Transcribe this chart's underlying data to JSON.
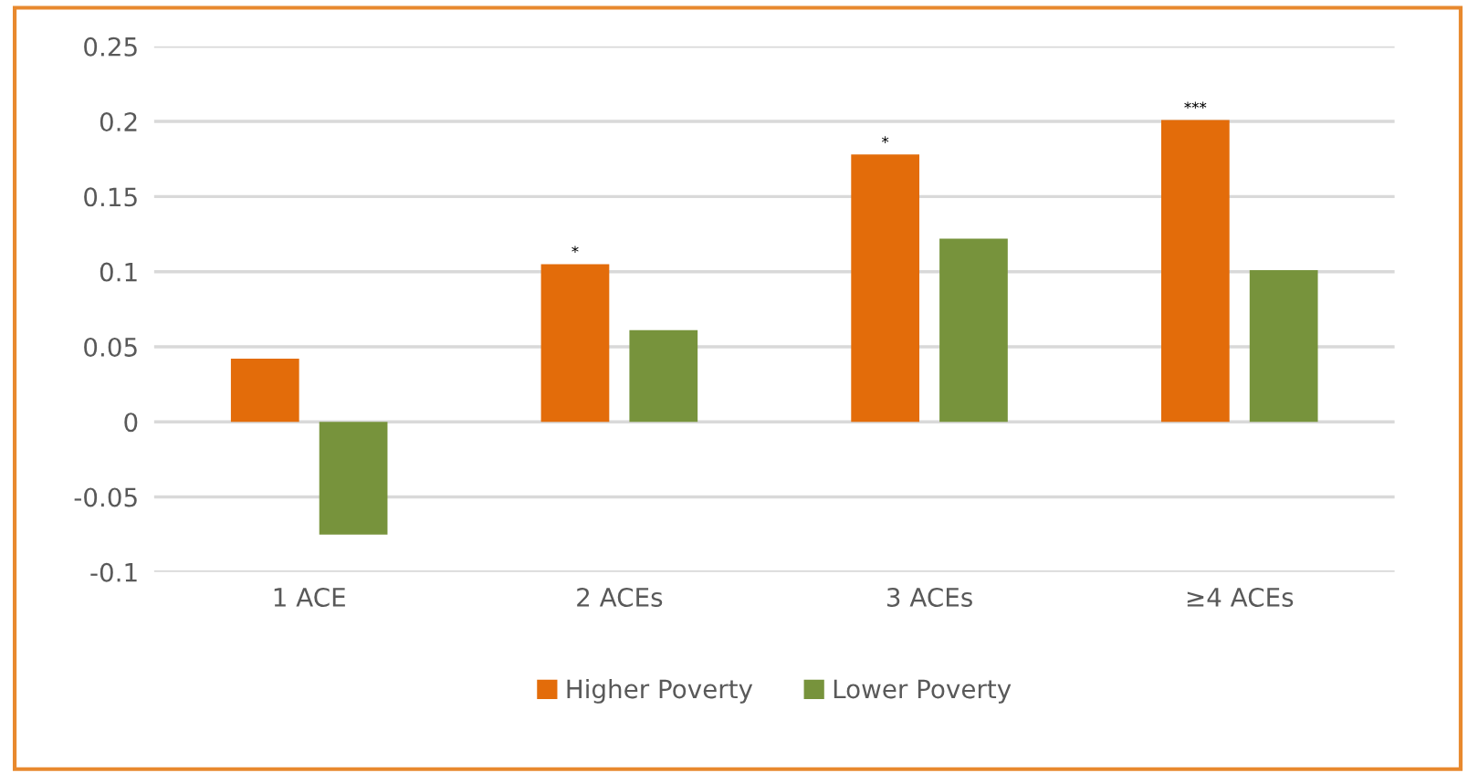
{
  "chart_data": {
    "type": "bar",
    "categories": [
      "1 ACE",
      "2 ACEs",
      "3 ACEs",
      "≥4 ACEs"
    ],
    "series": [
      {
        "name": "Higher Poverty",
        "color": "#e36c0a",
        "values": [
          0.042,
          0.105,
          0.178,
          0.201
        ],
        "value_labels": [
          null,
          "*",
          "*",
          "***"
        ]
      },
      {
        "name": "Lower Poverty",
        "color": "#77933c",
        "values": [
          -0.075,
          0.061,
          0.122,
          0.101
        ]
      }
    ],
    "ylim": [
      -0.1,
      0.25
    ],
    "yticks": [
      {
        "value": -0.1,
        "label": "-0.1"
      },
      {
        "value": -0.05,
        "label": "-0.05"
      },
      {
        "value": 0,
        "label": "0"
      },
      {
        "value": 0.05,
        "label": "0.05"
      },
      {
        "value": 0.1,
        "label": "0.1"
      },
      {
        "value": 0.15,
        "label": "0.15"
      },
      {
        "value": 0.2,
        "label": "0.2"
      },
      {
        "value": 0.25,
        "label": "0.25"
      }
    ],
    "grid": "y",
    "legend": "bottom"
  }
}
